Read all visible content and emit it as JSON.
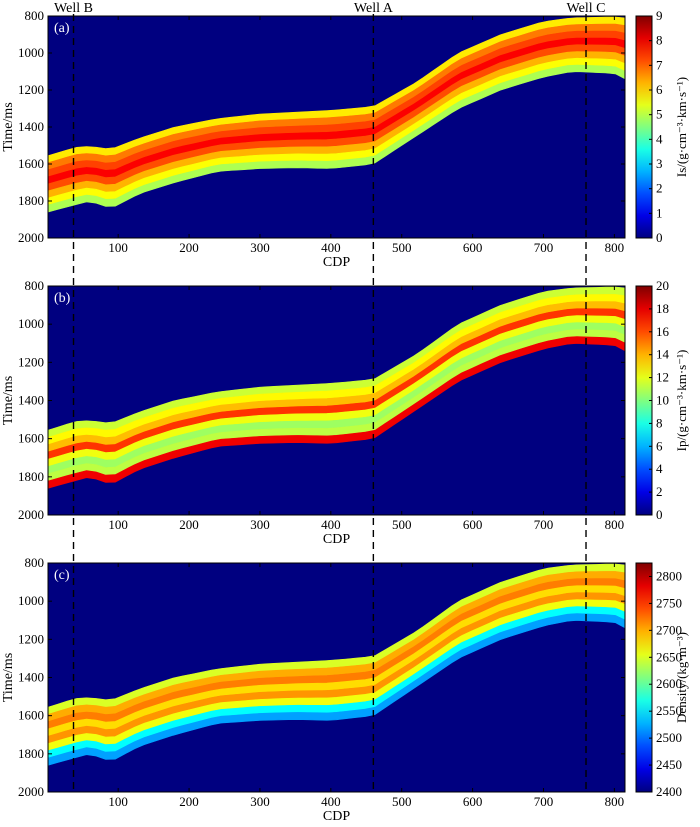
{
  "wells": [
    {
      "name": "Well B",
      "cdp": 37
    },
    {
      "name": "Well A",
      "cdp": 460
    },
    {
      "name": "Well C",
      "cdp": 760
    }
  ],
  "chart_data": [
    {
      "type": "heatmap",
      "panel_label": "(a)",
      "xlabel": "CDP",
      "ylabel": "Time/ms",
      "xlim": [
        1,
        815
      ],
      "ylim": [
        2000,
        800
      ],
      "xticks": [
        100,
        200,
        300,
        400,
        500,
        600,
        700,
        800
      ],
      "yticks": [
        800,
        1000,
        1200,
        1400,
        1600,
        1800,
        2000
      ],
      "colorbar": {
        "label": "Is/(g·cm⁻³·km·s⁻¹)",
        "range": [
          0,
          9
        ],
        "ticks": [
          0,
          1,
          2,
          3,
          4,
          5,
          6,
          7,
          8,
          9
        ]
      },
      "background_value": 0,
      "layer_values": [
        5.8,
        6.8,
        7.3,
        7.9,
        7.2,
        6.3,
        5.6,
        4.9
      ],
      "top_horizon": {
        "cdp": [
          1,
          40,
          60,
          90,
          130,
          180,
          240,
          300,
          350,
          400,
          460,
          520,
          580,
          640,
          700,
          740,
          800,
          815
        ],
        "time": [
          1555,
          1510,
          1505,
          1520,
          1460,
          1400,
          1355,
          1330,
          1320,
          1310,
          1290,
          1160,
          1000,
          900,
          830,
          810,
          805,
          810
        ]
      },
      "bottom_horizon": {
        "cdp": [
          1,
          40,
          60,
          90,
          130,
          180,
          240,
          300,
          350,
          400,
          460,
          520,
          580,
          640,
          700,
          740,
          800,
          815
        ],
        "time": [
          1860,
          1820,
          1800,
          1840,
          1760,
          1700,
          1640,
          1625,
          1620,
          1625,
          1600,
          1450,
          1300,
          1200,
          1130,
          1100,
          1110,
          1140
        ]
      }
    },
    {
      "type": "heatmap",
      "panel_label": "(b)",
      "xlabel": "CDP",
      "ylabel": "Time/ms",
      "xlim": [
        1,
        815
      ],
      "ylim": [
        2000,
        800
      ],
      "xticks": [
        100,
        200,
        300,
        400,
        500,
        600,
        700,
        800
      ],
      "yticks": [
        800,
        1000,
        1200,
        1400,
        1600,
        1800,
        2000
      ],
      "colorbar": {
        "label": "Ip/(g·cm⁻³·km·s⁻¹)",
        "range": [
          0,
          20
        ],
        "ticks": [
          0,
          2,
          4,
          6,
          8,
          10,
          12,
          14,
          16,
          18,
          20
        ]
      },
      "background_value": 0,
      "layer_values": [
        11.5,
        12.6,
        13.8,
        16.5,
        12.2,
        10.6,
        11.2,
        17.8
      ],
      "top_horizon": {
        "cdp": [
          1,
          40,
          60,
          90,
          130,
          180,
          240,
          300,
          350,
          400,
          460,
          520,
          580,
          640,
          700,
          740,
          800,
          815
        ],
        "time": [
          1555,
          1510,
          1505,
          1520,
          1460,
          1400,
          1355,
          1330,
          1320,
          1310,
          1290,
          1160,
          1000,
          900,
          830,
          810,
          805,
          810
        ]
      },
      "bottom_horizon": {
        "cdp": [
          1,
          40,
          60,
          90,
          130,
          180,
          240,
          300,
          350,
          400,
          460,
          520,
          580,
          640,
          700,
          740,
          800,
          815
        ],
        "time": [
          1860,
          1820,
          1800,
          1840,
          1760,
          1700,
          1640,
          1625,
          1620,
          1625,
          1600,
          1450,
          1300,
          1200,
          1130,
          1100,
          1110,
          1140
        ]
      }
    },
    {
      "type": "heatmap",
      "panel_label": "(c)",
      "xlabel": "CDP",
      "ylabel": "Time/ms",
      "xlim": [
        1,
        815
      ],
      "ylim": [
        2000,
        800
      ],
      "xticks": [
        100,
        200,
        300,
        400,
        500,
        600,
        700,
        800
      ],
      "yticks": [
        800,
        1000,
        1200,
        1400,
        1600,
        1800,
        2000
      ],
      "colorbar": {
        "label": "Density/(kg·m⁻³)",
        "range": [
          2400,
          2825
        ],
        "ticks": [
          2400,
          2450,
          2500,
          2550,
          2600,
          2650,
          2700,
          2750,
          2800
        ]
      },
      "background_value": 2400,
      "layer_values": [
        2650,
        2700,
        2720,
        2680,
        2710,
        2660,
        2560,
        2520
      ],
      "top_horizon": {
        "cdp": [
          1,
          40,
          60,
          90,
          130,
          180,
          240,
          300,
          350,
          400,
          460,
          520,
          580,
          640,
          700,
          740,
          800,
          815
        ],
        "time": [
          1555,
          1510,
          1505,
          1520,
          1460,
          1400,
          1355,
          1330,
          1320,
          1310,
          1290,
          1160,
          1000,
          900,
          830,
          810,
          805,
          810
        ]
      },
      "bottom_horizon": {
        "cdp": [
          1,
          40,
          60,
          90,
          130,
          180,
          240,
          300,
          350,
          400,
          460,
          520,
          580,
          640,
          700,
          740,
          800,
          815
        ],
        "time": [
          1860,
          1820,
          1800,
          1840,
          1760,
          1700,
          1640,
          1625,
          1620,
          1625,
          1600,
          1450,
          1300,
          1200,
          1130,
          1100,
          1110,
          1140
        ]
      }
    }
  ]
}
